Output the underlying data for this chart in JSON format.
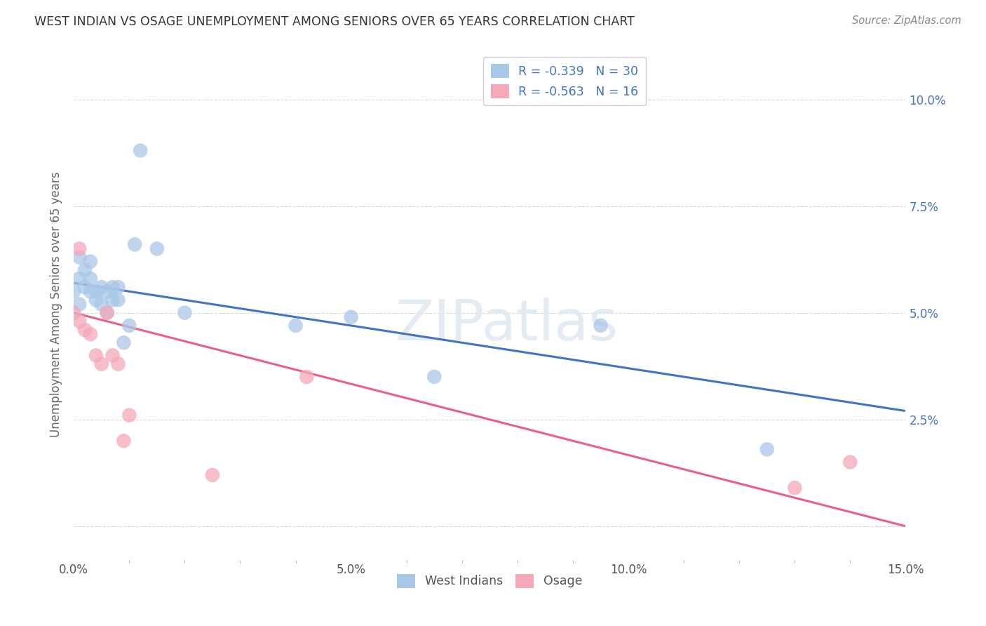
{
  "title": "WEST INDIAN VS OSAGE UNEMPLOYMENT AMONG SENIORS OVER 65 YEARS CORRELATION CHART",
  "source": "Source: ZipAtlas.com",
  "ylabel": "Unemployment Among Seniors over 65 years",
  "xlim": [
    0.0,
    0.15
  ],
  "ylim": [
    -0.008,
    0.112
  ],
  "blue_color": "#a8c8e8",
  "pink_color": "#f4a8b8",
  "blue_line_color": "#4472c4",
  "pink_line_color": "#e8608a",
  "west_indians_x": [
    0.0,
    0.001,
    0.001,
    0.001,
    0.002,
    0.002,
    0.003,
    0.003,
    0.003,
    0.004,
    0.004,
    0.005,
    0.005,
    0.006,
    0.006,
    0.007,
    0.007,
    0.008,
    0.008,
    0.009,
    0.01,
    0.011,
    0.012,
    0.015,
    0.02,
    0.04,
    0.05,
    0.065,
    0.095,
    0.125
  ],
  "west_indians_y": [
    0.055,
    0.058,
    0.063,
    0.052,
    0.06,
    0.056,
    0.058,
    0.055,
    0.062,
    0.055,
    0.053,
    0.052,
    0.056,
    0.055,
    0.05,
    0.056,
    0.053,
    0.053,
    0.056,
    0.043,
    0.047,
    0.066,
    0.088,
    0.065,
    0.05,
    0.047,
    0.049,
    0.035,
    0.047,
    0.018
  ],
  "osage_x": [
    0.0,
    0.001,
    0.001,
    0.002,
    0.003,
    0.004,
    0.005,
    0.006,
    0.007,
    0.008,
    0.009,
    0.01,
    0.025,
    0.042,
    0.13,
    0.14
  ],
  "osage_y": [
    0.05,
    0.065,
    0.048,
    0.046,
    0.045,
    0.04,
    0.038,
    0.05,
    0.04,
    0.038,
    0.02,
    0.026,
    0.012,
    0.035,
    0.009,
    0.015
  ],
  "blue_line_x0": 0.0,
  "blue_line_y0": 0.057,
  "blue_line_x1": 0.15,
  "blue_line_y1": 0.027,
  "pink_line_x0": 0.0,
  "pink_line_y0": 0.05,
  "pink_line_x1": 0.15,
  "pink_line_y1": 0.0,
  "legend_r1": "R = -0.339",
  "legend_n1": "N = 30",
  "legend_r2": "R = -0.563",
  "legend_n2": "N = 16",
  "watermark": "ZIPatlas",
  "background_color": "#ffffff",
  "grid_color": "#d8d8d8"
}
